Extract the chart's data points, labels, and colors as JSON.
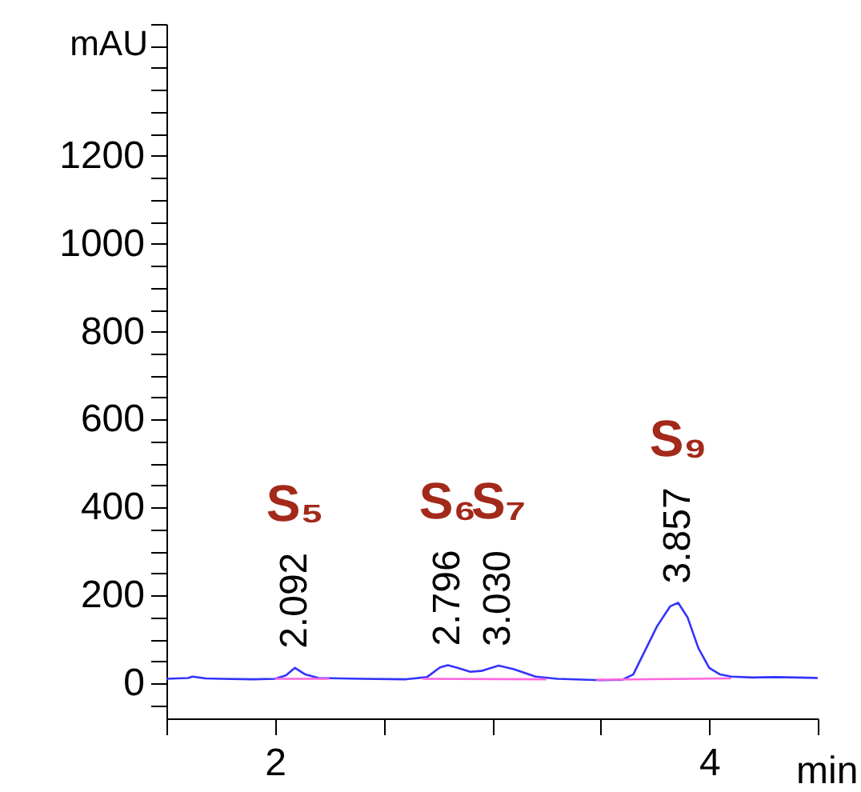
{
  "chart_data": {
    "type": "line",
    "xlabel": "min",
    "ylabel": "mAU",
    "xlim": [
      1.5,
      4.5
    ],
    "xticks": [
      {
        "value": 1.5,
        "label": null
      },
      2,
      {
        "value": 2.5,
        "label": null
      },
      {
        "value": 3,
        "label": null
      },
      {
        "value": 3.5,
        "label": null
      },
      4,
      {
        "value": 4.5,
        "label": null
      }
    ],
    "ylim": [
      -80,
      1500
    ],
    "yticks": [
      {
        "value": -50,
        "label": null
      },
      0,
      {
        "value": 50,
        "label": null
      },
      {
        "value": 100,
        "label": null
      },
      {
        "value": 150,
        "label": null
      },
      200,
      {
        "value": 250,
        "label": null
      },
      {
        "value": 300,
        "label": null
      },
      {
        "value": 350,
        "label": null
      },
      400,
      {
        "value": 450,
        "label": null
      },
      {
        "value": 500,
        "label": null
      },
      {
        "value": 550,
        "label": null
      },
      600,
      {
        "value": 650,
        "label": null
      },
      {
        "value": 700,
        "label": null
      },
      {
        "value": 750,
        "label": null
      },
      800,
      {
        "value": 850,
        "label": null
      },
      {
        "value": 900,
        "label": null
      },
      {
        "value": 950,
        "label": null
      },
      1000,
      {
        "value": 1050,
        "label": null
      },
      {
        "value": 1100,
        "label": null
      },
      {
        "value": 1150,
        "label": null
      },
      1200,
      {
        "value": 1250,
        "label": null
      },
      {
        "value": 1300,
        "label": null
      },
      {
        "value": 1350,
        "label": null
      },
      {
        "value": 1400,
        "label": null
      },
      {
        "value": 1450,
        "label": null
      },
      {
        "value": 1500,
        "label": null
      }
    ],
    "marker": "none",
    "line_style": "solid",
    "series": [
      {
        "color": "#3333ff",
        "x": [
          1.5,
          1.6,
          1.62,
          1.68,
          1.75,
          1.9,
          2.0,
          2.05,
          2.092,
          2.14,
          2.2,
          2.4,
          2.6,
          2.7,
          2.76,
          2.796,
          2.84,
          2.9,
          2.95,
          3.03,
          3.1,
          3.2,
          3.3,
          3.5,
          3.6,
          3.65,
          3.7,
          3.76,
          3.82,
          3.857,
          3.9,
          3.95,
          4.0,
          4.05,
          4.1,
          4.2,
          4.3,
          4.4,
          4.5
        ],
        "values": [
          10,
          12,
          15,
          11,
          10,
          9,
          10,
          18,
          35,
          20,
          12,
          10,
          9,
          14,
          36,
          41,
          35,
          26,
          28,
          40,
          32,
          15,
          10,
          7,
          8,
          20,
          70,
          130,
          175,
          183,
          150,
          80,
          35,
          20,
          15,
          13,
          14,
          13,
          12
        ]
      },
      {
        "color": "#ff66dd",
        "x": [
          2.0,
          2.25,
          2.26,
          2.68,
          3.25,
          3.26,
          3.48,
          4.1
        ],
        "values": [
          10,
          10,
          null,
          10,
          9,
          null,
          8,
          11
        ]
      }
    ],
    "annotations": [
      {
        "text": "2.092",
        "x": 2.092,
        "y": 35
      },
      {
        "text": "2.796",
        "x": 2.796,
        "y": 41
      },
      {
        "text": "3.030",
        "x": 3.03,
        "y": 40
      },
      {
        "text": "3.857",
        "x": 3.857,
        "y": 183
      },
      "S₅",
      "S₆",
      "S₇",
      "S₉"
    ]
  }
}
